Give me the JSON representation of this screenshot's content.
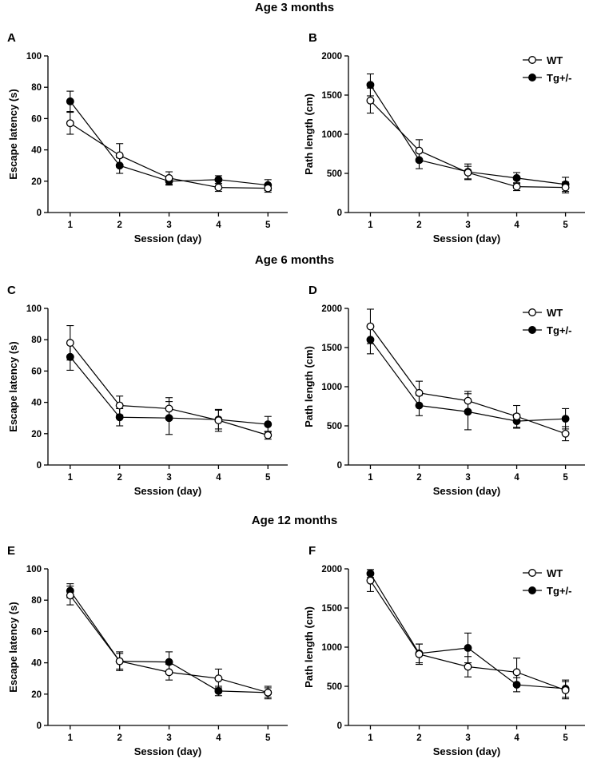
{
  "figure": {
    "row_titles": [
      "Age 3 months",
      "Age 6 months",
      "Age 12 months"
    ]
  },
  "colors": {
    "wt_fill": "#ffffff",
    "tg_fill": "#000000",
    "line": "#000000"
  },
  "chart_data": [
    {
      "panel": "A",
      "type": "line",
      "xlabel": "Session (day)",
      "ylabel": "Escape latency (s)",
      "x": [
        1,
        2,
        3,
        4,
        5
      ],
      "xlim": [
        0.55,
        5.4
      ],
      "ylim": [
        0,
        100
      ],
      "yticks": [
        0,
        20,
        40,
        60,
        80,
        100
      ],
      "yticks_text": [
        "0",
        "20",
        "40",
        "60",
        "80",
        "100"
      ],
      "xticks_text": [
        "1",
        "2",
        "3",
        "4",
        "5"
      ],
      "legend": null,
      "series": [
        {
          "name": "WT",
          "marker": "open-circle",
          "values": [
            57,
            36.5,
            22,
            16,
            15.5
          ],
          "errors": [
            7,
            7.5,
            4,
            2.5,
            2.5
          ]
        },
        {
          "name": "Tg+/-",
          "marker": "filled-circle",
          "values": [
            71,
            30,
            20,
            21,
            17.5
          ],
          "errors": [
            6.5,
            5,
            2.5,
            2.5,
            3.5
          ]
        }
      ]
    },
    {
      "panel": "B",
      "type": "line",
      "xlabel": "Session (day)",
      "ylabel": "Path length (cm)",
      "x": [
        1,
        2,
        3,
        4,
        5
      ],
      "xlim": [
        0.55,
        5.4
      ],
      "ylim": [
        0,
        2000
      ],
      "yticks": [
        0,
        500,
        1000,
        1500,
        2000
      ],
      "yticks_text": [
        "0",
        "500",
        "1000",
        "1500",
        "2000"
      ],
      "xticks_text": [
        "1",
        "2",
        "3",
        "4",
        "5"
      ],
      "legend": "top-right",
      "series": [
        {
          "name": "WT",
          "marker": "open-circle",
          "values": [
            1430,
            790,
            510,
            330,
            320
          ],
          "errors": [
            160,
            140,
            80,
            50,
            70
          ]
        },
        {
          "name": "Tg+/-",
          "marker": "filled-circle",
          "values": [
            1630,
            670,
            520,
            440,
            360
          ],
          "errors": [
            140,
            110,
            100,
            70,
            90
          ]
        }
      ]
    },
    {
      "panel": "C",
      "type": "line",
      "xlabel": "Session (day)",
      "ylabel": "Escape latency (s)",
      "x": [
        1,
        2,
        3,
        4,
        5
      ],
      "xlim": [
        0.55,
        5.4
      ],
      "ylim": [
        0,
        100
      ],
      "yticks": [
        0,
        20,
        40,
        60,
        80,
        100
      ],
      "yticks_text": [
        "0",
        "20",
        "40",
        "60",
        "80",
        "100"
      ],
      "xticks_text": [
        "1",
        "2",
        "3",
        "4",
        "5"
      ],
      "legend": null,
      "series": [
        {
          "name": "WT",
          "marker": "open-circle",
          "values": [
            78,
            38,
            36,
            28.5,
            19
          ],
          "errors": [
            11,
            6,
            7,
            7,
            2.5
          ]
        },
        {
          "name": "Tg+/-",
          "marker": "filled-circle",
          "values": [
            69,
            30.5,
            30,
            29,
            26
          ],
          "errors": [
            8.5,
            5.5,
            10.5,
            6,
            5
          ]
        }
      ]
    },
    {
      "panel": "D",
      "type": "line",
      "xlabel": "Session (day)",
      "ylabel": "Path length (cm)",
      "x": [
        1,
        2,
        3,
        4,
        5
      ],
      "xlim": [
        0.55,
        5.4
      ],
      "ylim": [
        0,
        2000
      ],
      "yticks": [
        0,
        500,
        1000,
        1500,
        2000
      ],
      "yticks_text": [
        "0",
        "500",
        "1000",
        "1500",
        "2000"
      ],
      "xticks_text": [
        "1",
        "2",
        "3",
        "4",
        "5"
      ],
      "legend": "top-right",
      "series": [
        {
          "name": "WT",
          "marker": "open-circle",
          "values": [
            1770,
            920,
            820,
            620,
            400
          ],
          "errors": [
            220,
            150,
            120,
            140,
            90
          ]
        },
        {
          "name": "Tg+/-",
          "marker": "filled-circle",
          "values": [
            1600,
            760,
            680,
            560,
            590
          ],
          "errors": [
            180,
            130,
            230,
            90,
            130
          ]
        }
      ]
    },
    {
      "panel": "E",
      "type": "line",
      "xlabel": "Session (day)",
      "ylabel": "Escape latency (s)",
      "x": [
        1,
        2,
        3,
        4,
        5
      ],
      "xlim": [
        0.55,
        5.4
      ],
      "ylim": [
        0,
        100
      ],
      "yticks": [
        0,
        20,
        40,
        60,
        80,
        100
      ],
      "yticks_text": [
        "0",
        "20",
        "40",
        "60",
        "80",
        "100"
      ],
      "xticks_text": [
        "1",
        "2",
        "3",
        "4",
        "5"
      ],
      "legend": null,
      "series": [
        {
          "name": "WT",
          "marker": "open-circle",
          "values": [
            83,
            41,
            34,
            30,
            21
          ],
          "errors": [
            6,
            6,
            5,
            6,
            3
          ]
        },
        {
          "name": "Tg+/-",
          "marker": "filled-circle",
          "values": [
            86,
            41,
            40.5,
            22,
            21
          ],
          "errors": [
            4.5,
            5,
            6.5,
            3,
            4
          ]
        }
      ]
    },
    {
      "panel": "F",
      "type": "line",
      "xlabel": "Session (day)",
      "ylabel": "Path length (cm)",
      "x": [
        1,
        2,
        3,
        4,
        5
      ],
      "xlim": [
        0.55,
        5.4
      ],
      "ylim": [
        0,
        2000
      ],
      "yticks": [
        0,
        500,
        1000,
        1500,
        2000
      ],
      "yticks_text": [
        "0",
        "500",
        "1000",
        "1500",
        "2000"
      ],
      "xticks_text": [
        "1",
        "2",
        "3",
        "4",
        "5"
      ],
      "legend": "top-right",
      "series": [
        {
          "name": "WT",
          "marker": "open-circle",
          "values": [
            1850,
            910,
            750,
            680,
            450
          ],
          "errors": [
            140,
            130,
            130,
            180,
            110
          ]
        },
        {
          "name": "Tg+/-",
          "marker": "filled-circle",
          "values": [
            1940,
            920,
            990,
            520,
            470
          ],
          "errors": [
            50,
            120,
            190,
            90,
            110
          ]
        }
      ]
    }
  ]
}
